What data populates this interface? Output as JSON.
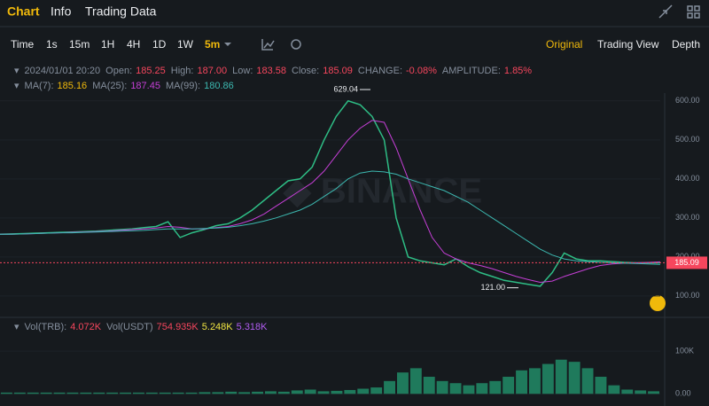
{
  "tabs": [
    "Chart",
    "Info",
    "Trading Data"
  ],
  "toolbar": {
    "intervals": [
      "Time",
      "1s",
      "15m",
      "1H",
      "4H",
      "1D",
      "1W"
    ],
    "active": "5m",
    "views": [
      "Original",
      "Trading View",
      "Depth"
    ]
  },
  "ohlc": {
    "date": "2024/01/01 20:20",
    "items": [
      {
        "label": "Open:",
        "value": "185.25"
      },
      {
        "label": "High:",
        "value": "187.00"
      },
      {
        "label": "Low:",
        "value": "183.58"
      },
      {
        "label": "Close:",
        "value": "185.09"
      },
      {
        "label": "CHANGE:",
        "value": "-0.08%"
      },
      {
        "label": "AMPLITUDE:",
        "value": "1.85%"
      }
    ]
  },
  "chart_data": [
    {
      "type": "line",
      "series": [
        {
          "color": "#2ebd85",
          "values": [
            258,
            259,
            260,
            261,
            262,
            263,
            264,
            265,
            266,
            268,
            270,
            272,
            275,
            278,
            290,
            250,
            262,
            270,
            280,
            285,
            300,
            320,
            345,
            370,
            395,
            400,
            430,
            500,
            560,
            600,
            590,
            560,
            500,
            300,
            200,
            190,
            185,
            180,
            195,
            175,
            160,
            150,
            140,
            135,
            130,
            125,
            160,
            210,
            195,
            190,
            190,
            188,
            186,
            185,
            185,
            185.09
          ]
        },
        {
          "name": "MA(25):",
          "value_label": "187.45",
          "color": "#c53fd6",
          "values": [
            258,
            258,
            259,
            260,
            261,
            262,
            263,
            264,
            265,
            266,
            268,
            270,
            272,
            274,
            278,
            276,
            272,
            272,
            275,
            278,
            285,
            295,
            310,
            330,
            350,
            370,
            390,
            420,
            460,
            500,
            530,
            550,
            545,
            480,
            400,
            320,
            250,
            210,
            195,
            185,
            178,
            170,
            160,
            150,
            142,
            135,
            138,
            150,
            160,
            170,
            178,
            182,
            184,
            185,
            186,
            187.45
          ]
        },
        {
          "name": "MA(99):",
          "value_label": "180.86",
          "color": "#3cb8b0",
          "values": [
            258,
            258,
            259,
            260,
            261,
            262,
            262,
            263,
            264,
            265,
            266,
            267,
            268,
            270,
            272,
            272,
            272,
            273,
            274,
            276,
            280,
            285,
            292,
            300,
            310,
            320,
            335,
            355,
            375,
            400,
            415,
            420,
            418,
            412,
            400,
            390,
            380,
            370,
            355,
            340,
            320,
            300,
            280,
            260,
            240,
            220,
            205,
            195,
            190,
            188,
            186,
            185,
            184,
            183,
            182,
            180.86
          ]
        }
      ],
      "legend_extra": {
        "name": "MA(7):",
        "value_label": "185.16",
        "color": "#f0b90b"
      },
      "ylim": [
        52,
        620
      ],
      "yticks": [
        {
          "value": 100,
          "label": "100.00"
        },
        {
          "value": 200,
          "label": "200.00"
        },
        {
          "value": 300,
          "label": "300.00"
        },
        {
          "value": 400,
          "label": "400.00"
        },
        {
          "value": 500,
          "label": "500.00"
        },
        {
          "value": 600,
          "label": "600.00"
        }
      ],
      "annotations": [
        {
          "value": 629.04,
          "label": "629.04"
        },
        {
          "value": 121,
          "label": "121.00"
        }
      ],
      "last_price": {
        "value": 185.09,
        "label": "185.09"
      }
    },
    {
      "type": "bar",
      "legend": [
        {
          "label": "Vol(TRB):",
          "value": "4.072K",
          "color": "#f6465d"
        },
        {
          "label": "Vol(USDT)",
          "value": "754.935K",
          "color": "#f6465d"
        },
        {
          "label": "",
          "value": "5.248K",
          "color": "#f0e442"
        },
        {
          "label": "",
          "value": "5.318K",
          "color": "#b05cf0"
        }
      ],
      "color": "#1f7a5c",
      "values": [
        3000,
        3000,
        3000,
        3000,
        3000,
        3000,
        3000,
        3000,
        3000,
        3000,
        3000,
        3000,
        3000,
        3000,
        3000,
        4000,
        4000,
        5000,
        4000,
        5000,
        6000,
        5000,
        8000,
        10000,
        6000,
        7000,
        9000,
        12000,
        15000,
        30000,
        50000,
        60000,
        40000,
        30000,
        25000,
        20000,
        25000,
        30000,
        40000,
        55000,
        60000,
        70000,
        80000,
        75000,
        60000,
        40000,
        20000,
        10000,
        8000,
        6000
      ],
      "ylim": [
        -16000,
        150000
      ],
      "yticks": [
        {
          "value": 0,
          "label": "0.00"
        },
        {
          "value": 100000,
          "label": "100K"
        }
      ]
    }
  ]
}
